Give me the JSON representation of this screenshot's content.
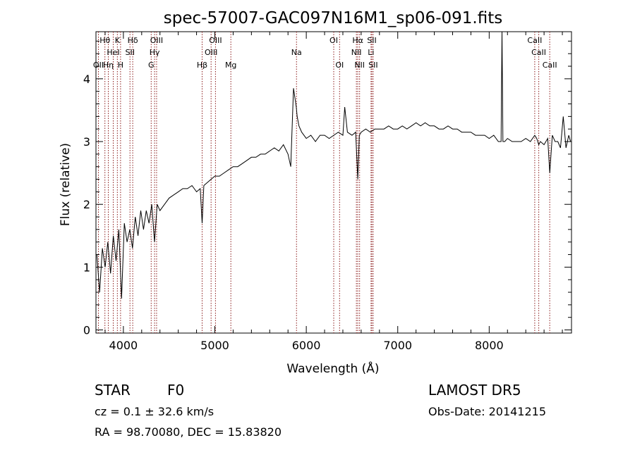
{
  "chart_data": {
    "type": "line",
    "title": "spec-57007-GAC097N16M1_sp06-091.fits",
    "xlabel": "Wavelength (Å)",
    "ylabel": "Flux (relative)",
    "xlim": [
      3700,
      8900
    ],
    "ylim": [
      -0.05,
      4.75
    ],
    "xticks": [
      4000,
      5000,
      6000,
      7000,
      8000
    ],
    "xtick_labels": [
      "4000",
      "5000",
      "6000",
      "7000",
      "8000"
    ],
    "yticks": [
      0,
      1,
      2,
      3,
      4
    ],
    "ytick_labels": [
      "0",
      "1",
      "2",
      "3",
      "4"
    ],
    "grid": false,
    "colors": {
      "spectrum": "#000000",
      "lines": "#8b1a1a"
    },
    "series": [
      {
        "x": [
          3710,
          3740,
          3770,
          3800,
          3830,
          3860,
          3890,
          3920,
          3950,
          3980,
          4010,
          4040,
          4070,
          4100,
          4130,
          4160,
          4190,
          4220,
          4250,
          4280,
          4310,
          4340,
          4370,
          4400,
          4450,
          4500,
          4550,
          4600,
          4650,
          4700,
          4750,
          4800,
          4840,
          4861,
          4880,
          4920,
          4960,
          5000,
          5050,
          5100,
          5150,
          5200,
          5250,
          5300,
          5350,
          5400,
          5450,
          5500,
          5550,
          5600,
          5650,
          5700,
          5750,
          5800,
          5830,
          5860,
          5870,
          5880,
          5890,
          5900,
          5920,
          5950,
          6000,
          6050,
          6100,
          6150,
          6200,
          6250,
          6300,
          6350,
          6400,
          6420,
          6450,
          6500,
          6540,
          6563,
          6580,
          6600,
          6650,
          6700,
          6750,
          6800,
          6850,
          6900,
          6950,
          7000,
          7050,
          7100,
          7150,
          7200,
          7250,
          7300,
          7350,
          7400,
          7450,
          7500,
          7550,
          7600,
          7650,
          7700,
          7750,
          7800,
          7850,
          7900,
          7950,
          8000,
          8050,
          8100,
          8130,
          8140,
          8150,
          8170,
          8200,
          8250,
          8300,
          8350,
          8400,
          8450,
          8498,
          8520,
          8542,
          8560,
          8600,
          8640,
          8662,
          8690,
          8720,
          8750,
          8780,
          8810,
          8840,
          8870,
          8890
        ],
        "y": [
          1.2,
          0.6,
          1.3,
          1.0,
          1.4,
          0.9,
          1.5,
          1.1,
          1.6,
          0.5,
          1.7,
          1.4,
          1.6,
          1.3,
          1.8,
          1.5,
          1.9,
          1.6,
          1.9,
          1.7,
          2.0,
          1.4,
          2.0,
          1.9,
          2.0,
          2.1,
          2.15,
          2.2,
          2.25,
          2.25,
          2.3,
          2.2,
          2.25,
          1.7,
          2.3,
          2.35,
          2.4,
          2.45,
          2.45,
          2.5,
          2.55,
          2.6,
          2.6,
          2.65,
          2.7,
          2.75,
          2.75,
          2.8,
          2.8,
          2.85,
          2.9,
          2.85,
          2.95,
          2.8,
          2.6,
          3.85,
          3.75,
          3.65,
          3.55,
          3.4,
          3.25,
          3.15,
          3.05,
          3.1,
          3.0,
          3.1,
          3.1,
          3.05,
          3.1,
          3.15,
          3.1,
          3.55,
          3.15,
          3.1,
          3.15,
          2.4,
          3.1,
          3.15,
          3.2,
          3.15,
          3.2,
          3.2,
          3.2,
          3.25,
          3.2,
          3.2,
          3.25,
          3.2,
          3.25,
          3.3,
          3.25,
          3.3,
          3.25,
          3.25,
          3.2,
          3.2,
          3.25,
          3.2,
          3.2,
          3.15,
          3.15,
          3.15,
          3.1,
          3.1,
          3.1,
          3.05,
          3.1,
          3.0,
          3.0,
          4.75,
          3.0,
          3.0,
          3.05,
          3.0,
          3.0,
          3.0,
          3.05,
          3.0,
          3.1,
          3.05,
          2.95,
          3.0,
          2.95,
          3.05,
          2.5,
          3.1,
          3.0,
          3.0,
          2.9,
          3.4,
          2.9,
          3.1,
          3.0
        ],
        "color": "#000000"
      }
    ],
    "lines": [
      {
        "wavelength": 3727,
        "row": 2,
        "label": "OII"
      },
      {
        "wavelength": 3798,
        "row": 0,
        "label": "Hθ"
      },
      {
        "wavelength": 3889,
        "row": 1,
        "label": "HeI"
      },
      {
        "wavelength": 3835,
        "row": 2,
        "label": "Hη"
      },
      {
        "wavelength": 3934,
        "row": 0,
        "label": "K"
      },
      {
        "wavelength": 3969,
        "row": 2,
        "label": "H"
      },
      {
        "wavelength": 4102,
        "row": 0,
        "label": "Hδ"
      },
      {
        "wavelength": 4072,
        "row": 1,
        "label": "SII"
      },
      {
        "wavelength": 4363,
        "row": 0,
        "label": "OIII"
      },
      {
        "wavelength": 4341,
        "row": 1,
        "label": "Hγ"
      },
      {
        "wavelength": 4304,
        "row": 2,
        "label": "G"
      },
      {
        "wavelength": 4861,
        "row": 2,
        "label": "Hβ"
      },
      {
        "wavelength": 5007,
        "row": 0,
        "label": "OIII"
      },
      {
        "wavelength": 4959,
        "row": 1,
        "label": "OIII"
      },
      {
        "wavelength": 5175,
        "row": 2,
        "label": "Mg"
      },
      {
        "wavelength": 5893,
        "row": 1,
        "label": "Na"
      },
      {
        "wavelength": 6300,
        "row": 0,
        "label": "OI"
      },
      {
        "wavelength": 6364,
        "row": 2,
        "label": "OI"
      },
      {
        "wavelength": 6563,
        "row": 0,
        "label": "Hα"
      },
      {
        "wavelength": 6548,
        "row": 1,
        "label": "NII"
      },
      {
        "wavelength": 6583,
        "row": 2,
        "label": "NII"
      },
      {
        "wavelength": 6717,
        "row": 0,
        "label": "SII"
      },
      {
        "wavelength": 6708,
        "row": 1,
        "label": "Li"
      },
      {
        "wavelength": 6731,
        "row": 2,
        "label": "SII"
      },
      {
        "wavelength": 8498,
        "row": 0,
        "label": "CaII"
      },
      {
        "wavelength": 8542,
        "row": 1,
        "label": "CaII"
      },
      {
        "wavelength": 8662,
        "row": 2,
        "label": "CaII"
      }
    ]
  },
  "info": {
    "object_class": "STAR",
    "subclass": "F0",
    "survey": "LAMOST  DR5",
    "redshift": "cz = 0.1 ± 32.6 km/s",
    "obs_date": "Obs-Date: 20141215",
    "coords": "RA =  98.70080, DEC =  15.83820"
  }
}
